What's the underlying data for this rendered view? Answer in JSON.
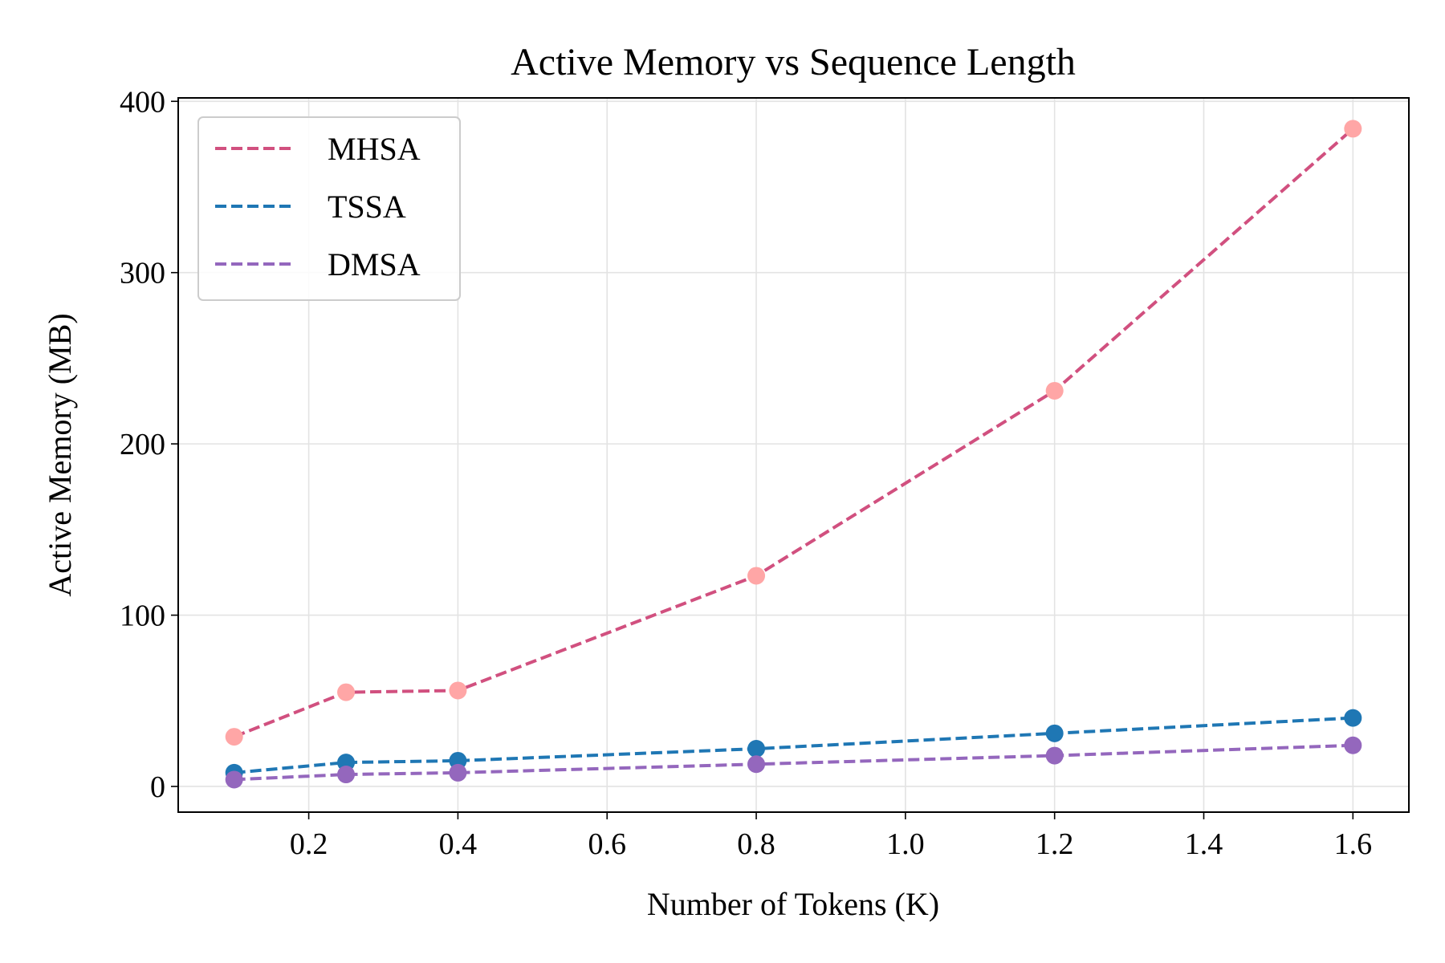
{
  "chart_data": {
    "type": "line",
    "title": "Active Memory vs Sequence Length",
    "xlabel": "Number of Tokens (K)",
    "ylabel": "Active Memory (MB)",
    "xlim": [
      0.025,
      1.675
    ],
    "ylim": [
      -15,
      402
    ],
    "x_ticks": [
      {
        "value": 0.2,
        "label": "0.2"
      },
      {
        "value": 0.4,
        "label": "0.4"
      },
      {
        "value": 0.6,
        "label": "0.6"
      },
      {
        "value": 0.8,
        "label": "0.8"
      },
      {
        "value": 1.0,
        "label": "1.0"
      },
      {
        "value": 1.2,
        "label": "1.2"
      },
      {
        "value": 1.4,
        "label": "1.4"
      },
      {
        "value": 1.6,
        "label": "1.6"
      }
    ],
    "y_ticks": [
      {
        "value": 0,
        "label": "0"
      },
      {
        "value": 100,
        "label": "100"
      },
      {
        "value": 200,
        "label": "200"
      },
      {
        "value": 300,
        "label": "300"
      },
      {
        "value": 400,
        "label": "400"
      }
    ],
    "grid": true,
    "legend_position": "top-left",
    "x": [
      0.1,
      0.25,
      0.4,
      0.8,
      1.2,
      1.6
    ],
    "series": [
      {
        "name": "MHSA",
        "line_color": "#d1507f",
        "marker_color": "#ffa6a6",
        "values": [
          29,
          55,
          56,
          123,
          231,
          384
        ]
      },
      {
        "name": "TSSA",
        "line_color": "#1f77b4",
        "marker_color": "#1f77b4",
        "values": [
          8,
          14,
          15,
          22,
          31,
          40
        ]
      },
      {
        "name": "DMSA",
        "line_color": "#9467bd",
        "marker_color": "#9467bd",
        "values": [
          4,
          7,
          8,
          13,
          18,
          24
        ]
      }
    ]
  }
}
